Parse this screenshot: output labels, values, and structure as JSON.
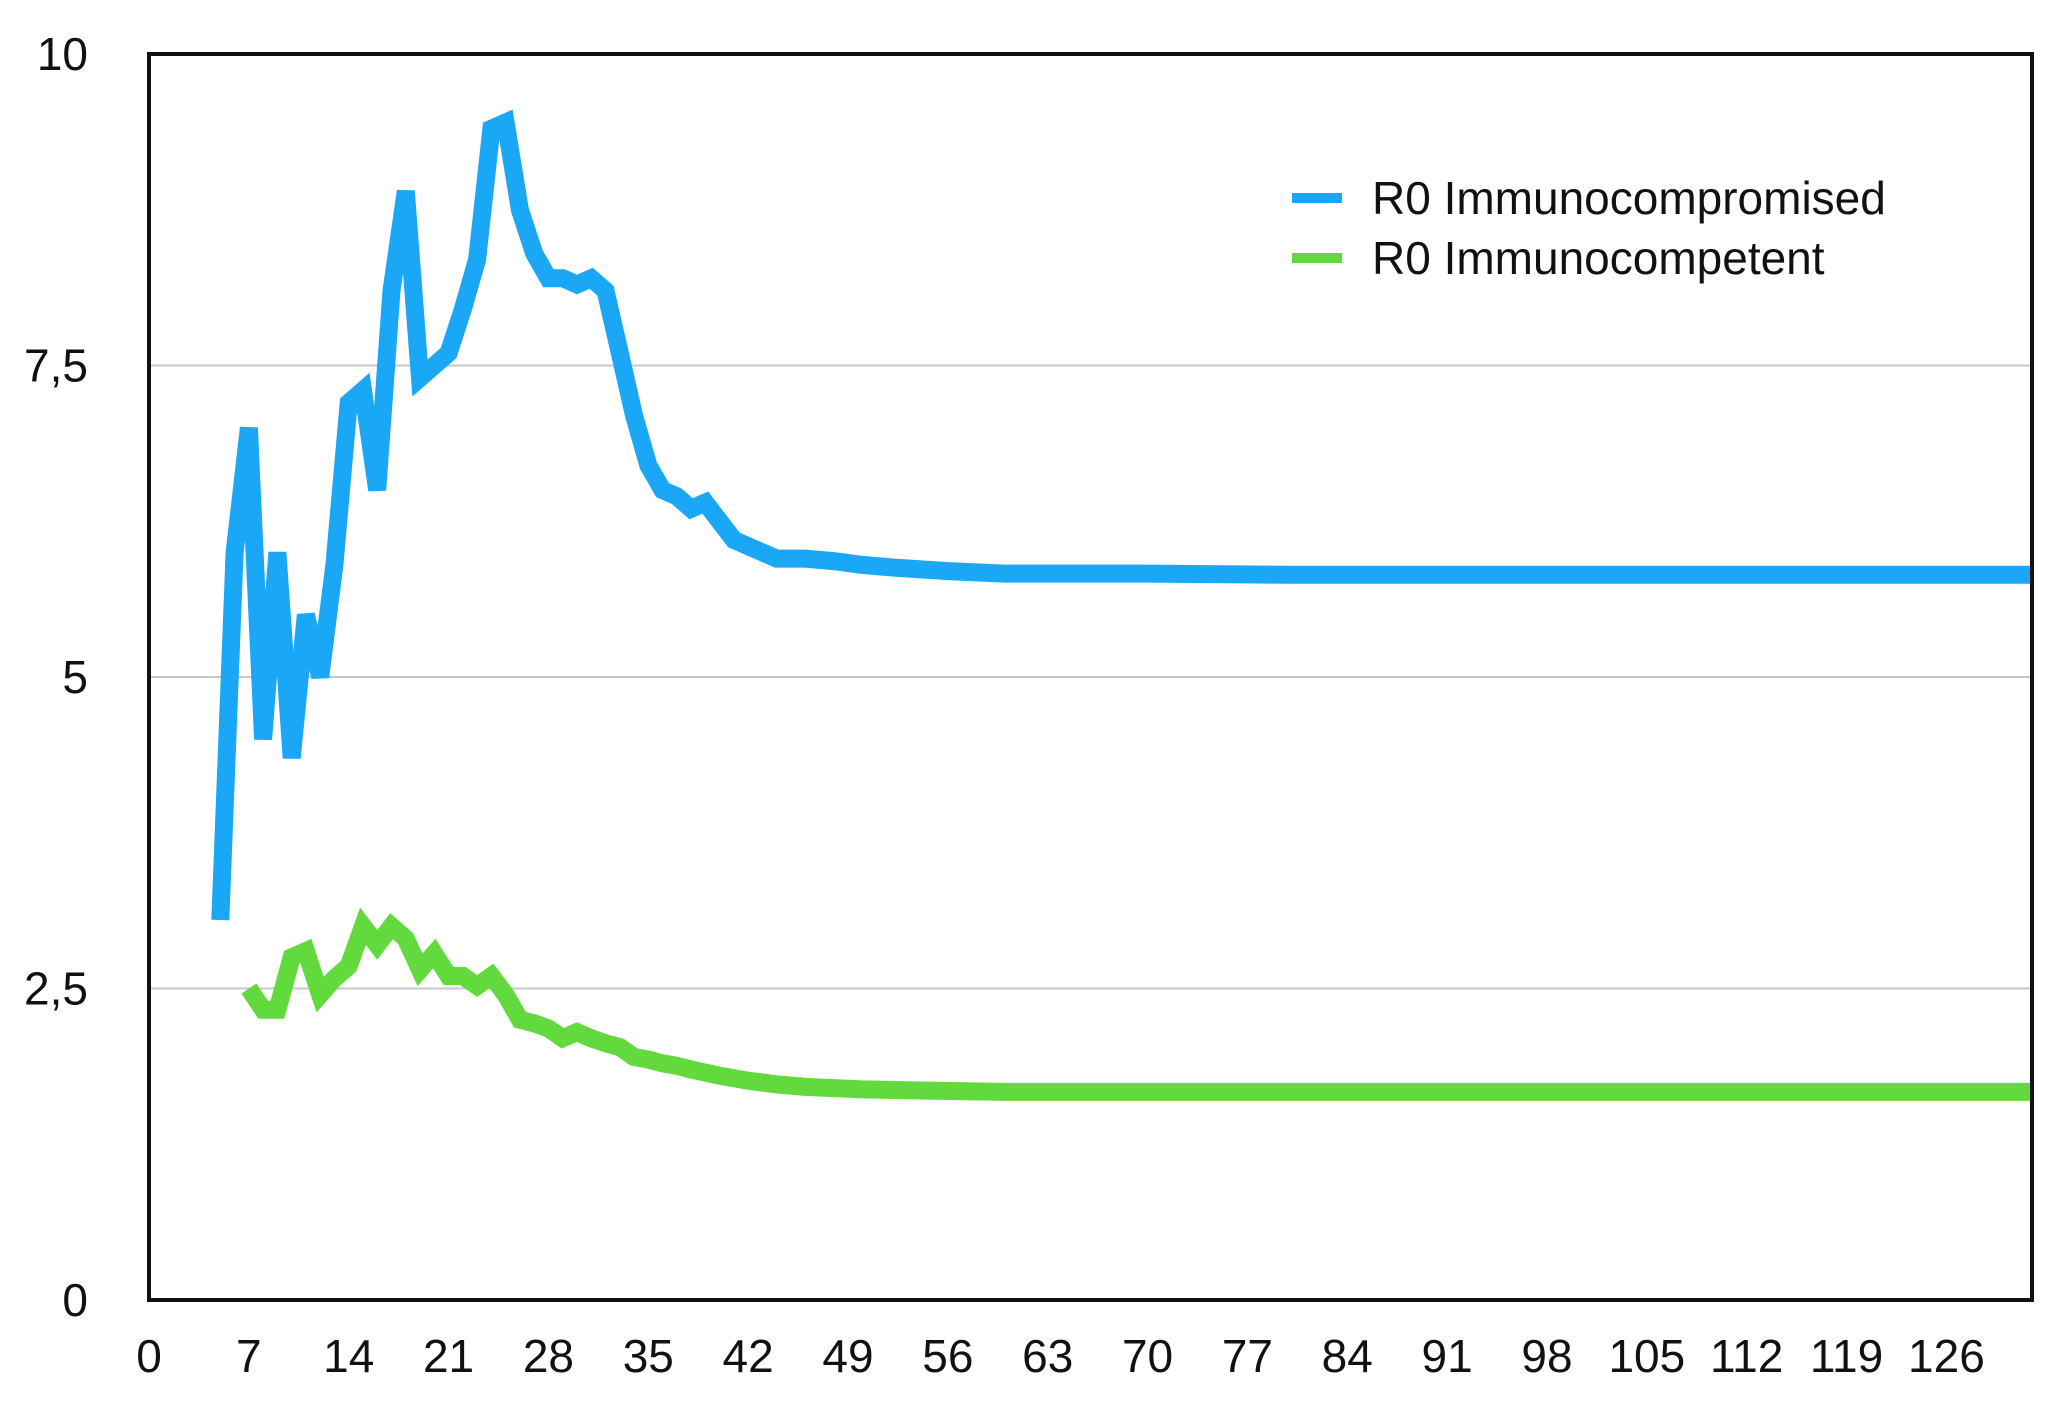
{
  "chart_data": {
    "type": "line",
    "title": "",
    "xlabel": "",
    "ylabel": "",
    "xlim": [
      0,
      132
    ],
    "ylim": [
      0,
      10
    ],
    "x_ticks": [
      0,
      7,
      14,
      21,
      28,
      35,
      42,
      49,
      56,
      63,
      70,
      77,
      84,
      91,
      98,
      105,
      112,
      119,
      126
    ],
    "y_ticks": [
      0,
      2.5,
      5,
      7.5,
      10
    ],
    "y_tick_labels": [
      "0",
      "2,5",
      "5",
      "7,5",
      "10"
    ],
    "grid": "horizontal",
    "legend_position": "top-right",
    "series": [
      {
        "name": "R0 Immunocompromised",
        "color": "#1aa7f5",
        "points": [
          [
            5,
            3.05
          ],
          [
            6,
            6.0
          ],
          [
            7,
            7.0
          ],
          [
            8,
            4.5
          ],
          [
            9,
            6.0
          ],
          [
            10,
            4.35
          ],
          [
            11,
            5.5
          ],
          [
            12,
            5.0
          ],
          [
            13,
            5.9
          ],
          [
            14,
            7.2
          ],
          [
            15,
            7.3
          ],
          [
            16,
            6.5
          ],
          [
            17,
            8.1
          ],
          [
            18,
            8.9
          ],
          [
            19,
            7.4
          ],
          [
            20,
            7.5
          ],
          [
            21,
            7.6
          ],
          [
            22,
            7.95
          ],
          [
            23,
            8.35
          ],
          [
            24,
            9.4
          ],
          [
            25,
            9.45
          ],
          [
            26,
            8.75
          ],
          [
            27,
            8.4
          ],
          [
            28,
            8.2
          ],
          [
            29,
            8.2
          ],
          [
            30,
            8.15
          ],
          [
            31,
            8.2
          ],
          [
            32,
            8.1
          ],
          [
            33,
            7.6
          ],
          [
            34,
            7.1
          ],
          [
            35,
            6.7
          ],
          [
            36,
            6.5
          ],
          [
            37,
            6.45
          ],
          [
            38,
            6.35
          ],
          [
            39,
            6.4
          ],
          [
            40,
            6.25
          ],
          [
            41,
            6.1
          ],
          [
            42,
            6.05
          ],
          [
            43,
            6.0
          ],
          [
            44,
            5.95
          ],
          [
            45,
            5.95
          ],
          [
            46,
            5.95
          ],
          [
            48,
            5.93
          ],
          [
            50,
            5.9
          ],
          [
            52,
            5.88
          ],
          [
            56,
            5.85
          ],
          [
            60,
            5.83
          ],
          [
            70,
            5.83
          ],
          [
            80,
            5.82
          ],
          [
            90,
            5.82
          ],
          [
            100,
            5.82
          ],
          [
            110,
            5.82
          ],
          [
            120,
            5.82
          ],
          [
            132,
            5.82
          ]
        ]
      },
      {
        "name": "R0 Immunocompetent",
        "color": "#62d93c",
        "points": [
          [
            7,
            2.5
          ],
          [
            8,
            2.33
          ],
          [
            9,
            2.33
          ],
          [
            10,
            2.75
          ],
          [
            11,
            2.8
          ],
          [
            12,
            2.45
          ],
          [
            13,
            2.58
          ],
          [
            14,
            2.68
          ],
          [
            15,
            3.0
          ],
          [
            16,
            2.85
          ],
          [
            17,
            3.0
          ],
          [
            18,
            2.9
          ],
          [
            19,
            2.65
          ],
          [
            20,
            2.78
          ],
          [
            21,
            2.6
          ],
          [
            22,
            2.6
          ],
          [
            23,
            2.52
          ],
          [
            24,
            2.6
          ],
          [
            25,
            2.45
          ],
          [
            26,
            2.25
          ],
          [
            27,
            2.22
          ],
          [
            28,
            2.18
          ],
          [
            29,
            2.1
          ],
          [
            30,
            2.15
          ],
          [
            31,
            2.1
          ],
          [
            32,
            2.06
          ],
          [
            33,
            2.03
          ],
          [
            34,
            1.95
          ],
          [
            35,
            1.93
          ],
          [
            36,
            1.9
          ],
          [
            37,
            1.88
          ],
          [
            38,
            1.85
          ],
          [
            40,
            1.8
          ],
          [
            42,
            1.76
          ],
          [
            44,
            1.73
          ],
          [
            46,
            1.71
          ],
          [
            50,
            1.69
          ],
          [
            55,
            1.68
          ],
          [
            60,
            1.67
          ],
          [
            70,
            1.67
          ],
          [
            80,
            1.67
          ],
          [
            90,
            1.67
          ],
          [
            100,
            1.67
          ],
          [
            110,
            1.67
          ],
          [
            120,
            1.67
          ],
          [
            132,
            1.67
          ]
        ]
      }
    ]
  }
}
